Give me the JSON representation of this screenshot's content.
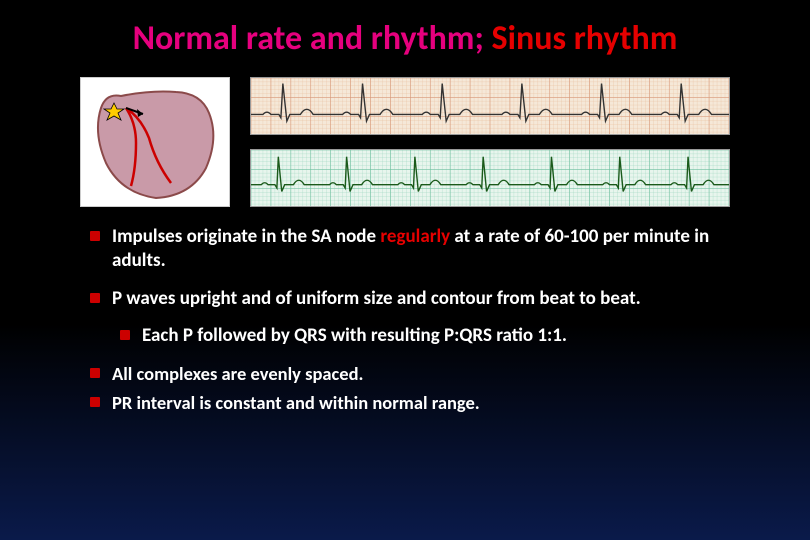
{
  "title": {
    "part1": "Normal rate and rhythm; ",
    "part2": "Sinus rhythm",
    "part1_color": "#e6007e",
    "part2_color": "#e60000",
    "fontsize": 34
  },
  "heart_diagram": {
    "outline_color": "#8b4a4a",
    "fill_color": "#c99aa8",
    "pathway_color": "#cc0000",
    "sa_node_color": "#ffcc00",
    "arrow_color": "#000000"
  },
  "ecg_strips": [
    {
      "grid_color": "#e8c0a0",
      "grid_major_color": "#d89878",
      "background": "#f5e8d8",
      "trace_color": "#333333",
      "beats": 6,
      "baseline": 0.65,
      "p_height": 0.08,
      "qrs_height": 0.55,
      "t_height": 0.18
    },
    {
      "grid_color": "#a0d8c0",
      "grid_major_color": "#70c0a0",
      "background": "#e8f5ed",
      "trace_color": "#1a5a1a",
      "beats": 7,
      "baseline": 0.62,
      "p_height": 0.07,
      "qrs_height": 0.5,
      "t_height": 0.16
    }
  ],
  "bullets": [
    {
      "segments": [
        {
          "text": "Impulses originate in the SA node ",
          "color": "#ffffff"
        },
        {
          "text": "regularly",
          "color": "#e60000"
        },
        {
          "text": " at a rate of 60-100 per minute in adults.",
          "color": "#ffffff"
        }
      ],
      "indent": 0
    },
    {
      "segments": [
        {
          "text": "P waves upright and of uniform size and contour from beat to beat.",
          "color": "#ffffff"
        }
      ],
      "indent": 0
    },
    {
      "segments": [
        {
          "text": "Each P followed by QRS with resulting P:QRS ratio 1:1.",
          "color": "#ffffff"
        }
      ],
      "indent": 1
    },
    {
      "segments": [
        {
          "text": "All complexes are evenly spaced.",
          "color": "#ffffff"
        }
      ],
      "indent": 0
    },
    {
      "segments": [
        {
          "text": "PR interval is constant and within normal range.",
          "color": "#ffffff"
        }
      ],
      "indent": 0
    }
  ],
  "styling": {
    "bullet_marker_color": "#cc0000",
    "bullet_fontsize": 19,
    "background_gradient": [
      "#000000",
      "#0a1a4a"
    ]
  }
}
